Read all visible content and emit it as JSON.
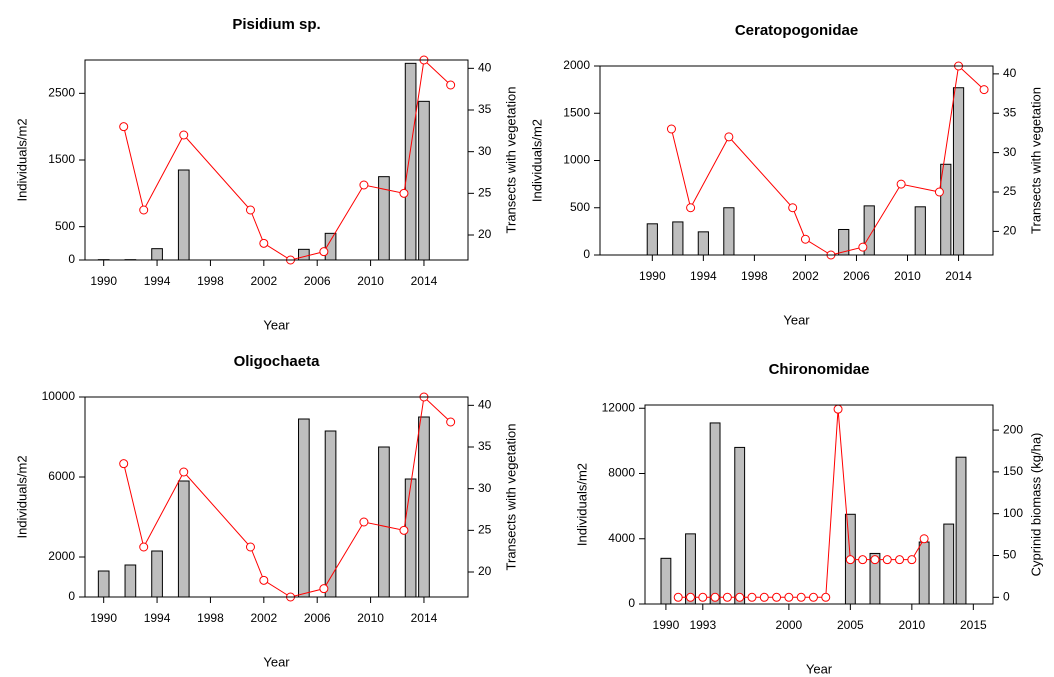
{
  "chart_data": [
    {
      "type": "combo",
      "title": "Pisidium sp.",
      "x_label": "Year",
      "y_label": "Individuals/m2",
      "y2_label": "Transects with vegetation",
      "xlim": [
        1988.6,
        2017.3
      ],
      "xticks": [
        1990,
        1994,
        1998,
        2002,
        2006,
        2010,
        2014
      ],
      "ylim": [
        0,
        3000
      ],
      "yticks": [
        0,
        500,
        1500,
        2500
      ],
      "y2lim": [
        17,
        41
      ],
      "y2ticks": [
        20,
        25,
        30,
        35,
        40
      ],
      "series": [
        {
          "type": "bar",
          "color": "#bebebe",
          "x": [
            1990,
            1992,
            1994,
            1996,
            2005,
            2007,
            2011,
            2013,
            2014
          ],
          "values": [
            5,
            5,
            170,
            1350,
            160,
            400,
            1250,
            2950,
            2380
          ]
        },
        {
          "type": "line",
          "color": "#ff0000",
          "axis": "y2",
          "x": [
            1991.5,
            1993,
            1996,
            2001,
            2002,
            2004,
            2006.5,
            2009.5,
            2012.5,
            2014,
            2016
          ],
          "values": [
            33,
            23,
            32,
            23,
            19,
            17,
            18,
            26,
            25,
            41,
            38
          ]
        }
      ]
    },
    {
      "type": "combo",
      "title": "Ceratopogonidae",
      "x_label": "Year",
      "y_label": "Individuals/m2",
      "y2_label": "Transects with vegetation",
      "xlim": [
        1985.9,
        2016.7
      ],
      "xticks": [
        1990,
        1994,
        1998,
        2002,
        2006,
        2010,
        2014
      ],
      "ylim": [
        0,
        2000
      ],
      "yticks": [
        0,
        500,
        1000,
        1500,
        2000
      ],
      "y2lim": [
        17,
        41
      ],
      "y2ticks": [
        20,
        25,
        30,
        35,
        40
      ],
      "series": [
        {
          "type": "bar",
          "color": "#bebebe",
          "x": [
            1990,
            1992,
            1994,
            1996,
            2005,
            2007,
            2011,
            2013,
            2014
          ],
          "values": [
            330,
            350,
            245,
            500,
            270,
            520,
            510,
            960,
            1770
          ]
        },
        {
          "type": "line",
          "color": "#ff0000",
          "axis": "y2",
          "x": [
            1991.5,
            1993,
            1996,
            2001,
            2002,
            2004,
            2006.5,
            2009.5,
            2012.5,
            2014,
            2016
          ],
          "values": [
            33,
            23,
            32,
            23,
            19,
            17,
            18,
            26,
            25,
            41,
            38
          ]
        }
      ]
    },
    {
      "type": "combo",
      "title": "Oligochaeta",
      "x_label": "Year",
      "y_label": "Individuals/m2",
      "y2_label": "Transects with vegetation",
      "xlim": [
        1988.6,
        2017.3
      ],
      "xticks": [
        1990,
        1994,
        1998,
        2002,
        2006,
        2010,
        2014
      ],
      "ylim": [
        0,
        10000
      ],
      "yticks": [
        0,
        2000,
        6000,
        10000
      ],
      "y2lim": [
        17,
        41
      ],
      "y2ticks": [
        20,
        25,
        30,
        35,
        40
      ],
      "series": [
        {
          "type": "bar",
          "color": "#bebebe",
          "x": [
            1990,
            1992,
            1994,
            1996,
            2005,
            2007,
            2011,
            2013,
            2014
          ],
          "values": [
            1300,
            1600,
            2300,
            5800,
            8900,
            8300,
            7500,
            5900,
            9000
          ]
        },
        {
          "type": "line",
          "color": "#ff0000",
          "axis": "y2",
          "x": [
            1991.5,
            1993,
            1996,
            2001,
            2002,
            2004,
            2006.5,
            2009.5,
            2012.5,
            2014,
            2016
          ],
          "values": [
            33,
            23,
            32,
            23,
            19,
            17,
            18,
            26,
            25,
            41,
            38
          ]
        }
      ]
    },
    {
      "type": "combo",
      "title": "Chironomidae",
      "x_label": "Year",
      "y_label": "Individuals/m2",
      "y2_label": "Cyprinid biomass (kg/ha)",
      "xlim": [
        1988.3,
        2016.6
      ],
      "xticks": [
        1990,
        1993,
        2000,
        2005,
        2010,
        2015
      ],
      "ylim": [
        0,
        12200
      ],
      "yticks": [
        0,
        4000,
        8000,
        12000
      ],
      "y2lim": [
        -8,
        230
      ],
      "y2ticks": [
        0,
        50,
        100,
        150,
        200
      ],
      "series": [
        {
          "type": "bar",
          "color": "#bebebe",
          "x": [
            1990,
            1992,
            1994,
            1996,
            2005,
            2007,
            2011,
            2013,
            2014
          ],
          "values": [
            2800,
            4300,
            11100,
            9600,
            5500,
            3100,
            3800,
            4900,
            9000
          ]
        },
        {
          "type": "line",
          "color": "#ff0000",
          "axis": "y2",
          "x": [
            1991,
            1992,
            1993,
            1994,
            1995,
            1996,
            1997,
            1998,
            1999,
            2000,
            2001,
            2002,
            2003,
            2004,
            2005,
            2006,
            2007,
            2008,
            2009,
            2010,
            2011
          ],
          "values": [
            0,
            0,
            0,
            0,
            0,
            0,
            0,
            0,
            0,
            0,
            0,
            0,
            0,
            225,
            45,
            45,
            45,
            45,
            45,
            45,
            70
          ]
        }
      ]
    }
  ]
}
